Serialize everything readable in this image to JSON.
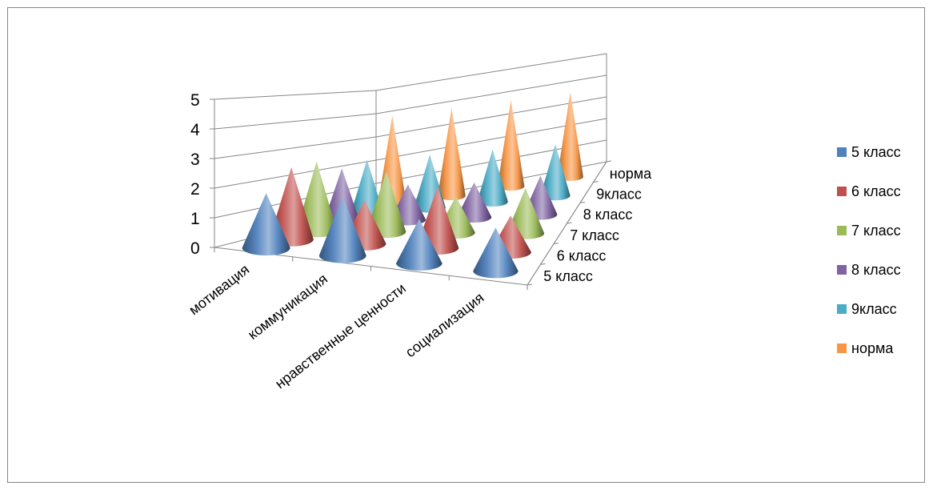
{
  "chart_data": {
    "type": "3d-cone",
    "categories": [
      "мотивация",
      "коммуникация",
      "нравственные ценности",
      "социализация"
    ],
    "y_ticks": [
      "0",
      "1",
      "2",
      "3",
      "4",
      "5"
    ],
    "ylim": [
      0,
      5
    ],
    "depth_labels": [
      "5 класс",
      "6 класс",
      "7 класс",
      "8 класс",
      "9класс",
      "норма"
    ],
    "series": [
      {
        "name": "5 класс",
        "color": "#4f81bd",
        "values": [
          1.9,
          2.1,
          1.6,
          1.6
        ]
      },
      {
        "name": "6 класс",
        "color": "#c0504d",
        "values": [
          2.6,
          1.6,
          2.3,
          1.4
        ]
      },
      {
        "name": "7 класс",
        "color": "#9bbb59",
        "values": [
          2.6,
          2.3,
          1.4,
          1.8
        ]
      },
      {
        "name": "8 класс",
        "color": "#8064a2",
        "values": [
          2.1,
          1.4,
          1.4,
          1.6
        ]
      },
      {
        "name": "9класс",
        "color": "#4bacc6",
        "values": [
          2.2,
          2.2,
          2.2,
          2.2
        ]
      },
      {
        "name": "норма",
        "color": "#f79646",
        "values": [
          3.8,
          3.8,
          3.8,
          3.8
        ]
      }
    ],
    "legend": "right",
    "grid": true
  }
}
